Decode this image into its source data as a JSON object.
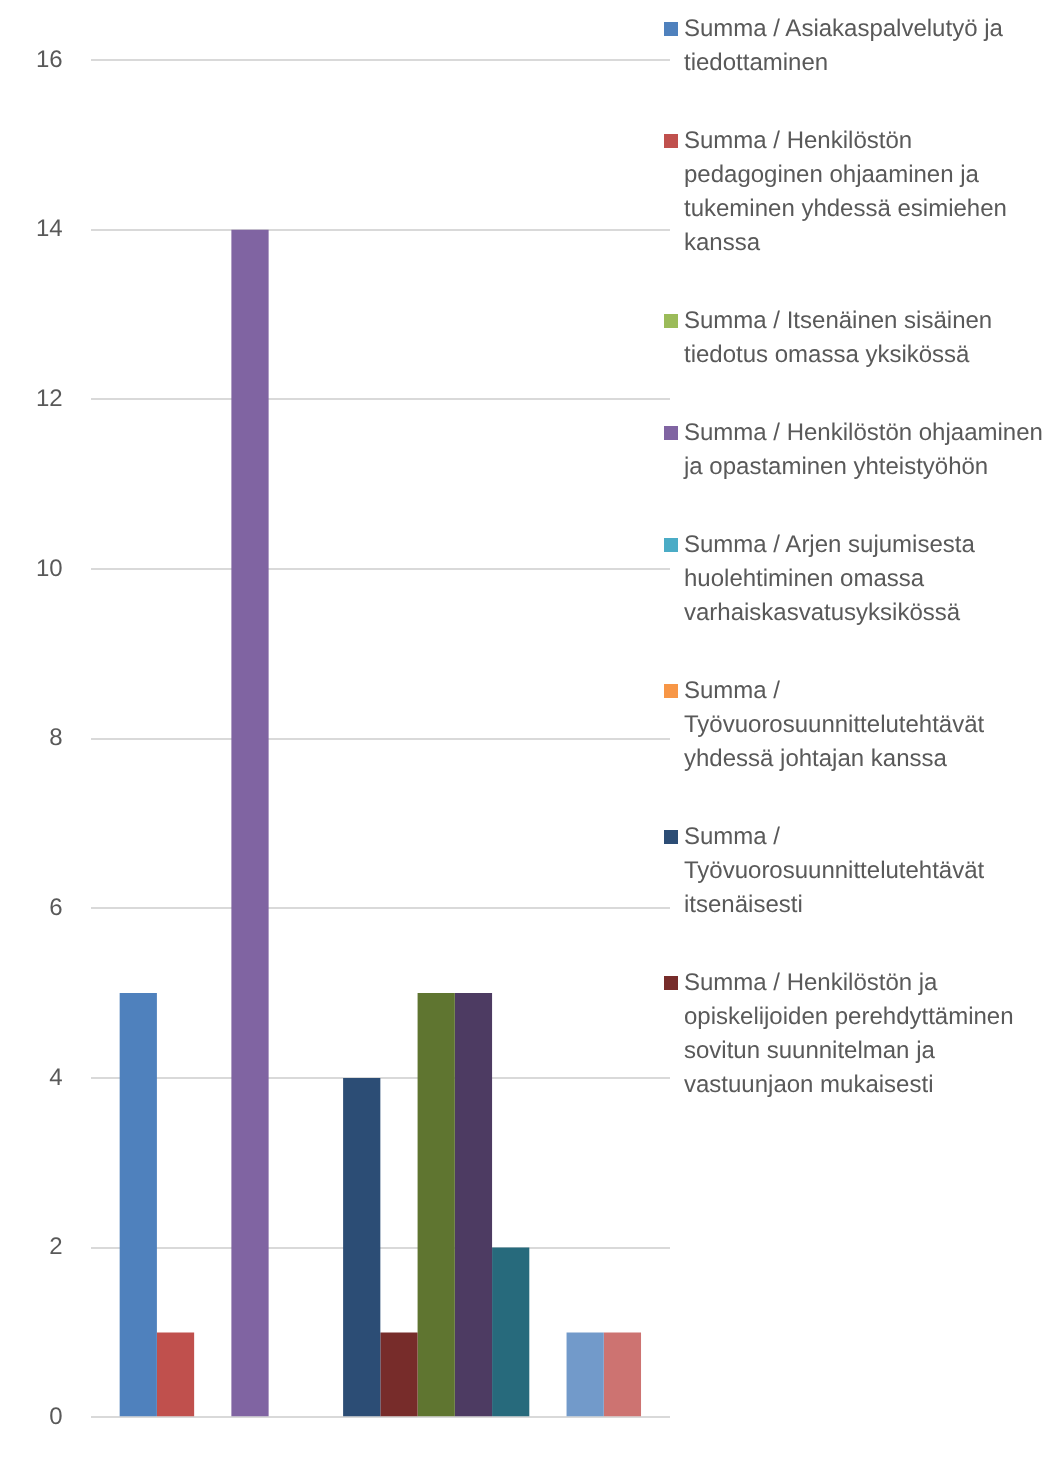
{
  "chart_data": {
    "type": "bar",
    "categories": [
      null
    ],
    "series": [
      {
        "name": "Summa  / Asiakaspalvelutyö ja tiedottaminen",
        "color": "#4f81bd",
        "values": [
          5
        ]
      },
      {
        "name": "Summa  / Henkilöstön pedagoginen ohjaaminen ja tukeminen yhdessä esimiehen kanssa",
        "color": "#c0504d",
        "values": [
          1
        ]
      },
      {
        "name": "Summa  / Itsenäinen sisäinen tiedotus omassa yksikössä",
        "color": "#9bbb59",
        "values": [
          0
        ]
      },
      {
        "name": "Summa  / Henkilöstön ohjaaminen ja opastaminen yhteistyöhön",
        "color": "#8064a2",
        "values": [
          14
        ]
      },
      {
        "name": "Summa  / Arjen sujumisesta huolehtiminen omassa varhaiskasvatusyksikössä",
        "color": "#4bacc6",
        "values": [
          0
        ]
      },
      {
        "name": "Summa  / Työvuorosuunnittelutehtävät yhdessä johtajan kanssa",
        "color": "#f79646",
        "values": [
          0
        ]
      },
      {
        "name": "Summa  / Työvuorosuunnittelutehtävät itsenäisesti",
        "color": "#2c4d75",
        "values": [
          4
        ]
      },
      {
        "name": "Summa  / Henkilöstön ja opiskelijoiden perehdyttäminen sovitun suunnitelman ja vastuunjaon mukaisesti",
        "color": "#772c2a",
        "values": [
          1
        ]
      },
      {
        "color": "#5f7530",
        "values": [
          5
        ]
      },
      {
        "color": "#4d3b62",
        "values": [
          5
        ]
      },
      {
        "color": "#276a7c",
        "values": [
          2
        ]
      },
      {
        "color": "#b65708",
        "values": [
          0
        ]
      },
      {
        "color": "#729aca",
        "values": [
          1
        ]
      },
      {
        "color": "#cd7371",
        "values": [
          1
        ]
      }
    ],
    "ylim": [
      0,
      16
    ],
    "yticks": [
      0,
      2,
      4,
      6,
      8,
      10,
      12,
      14,
      16
    ],
    "grid": "y",
    "legend": "right"
  }
}
